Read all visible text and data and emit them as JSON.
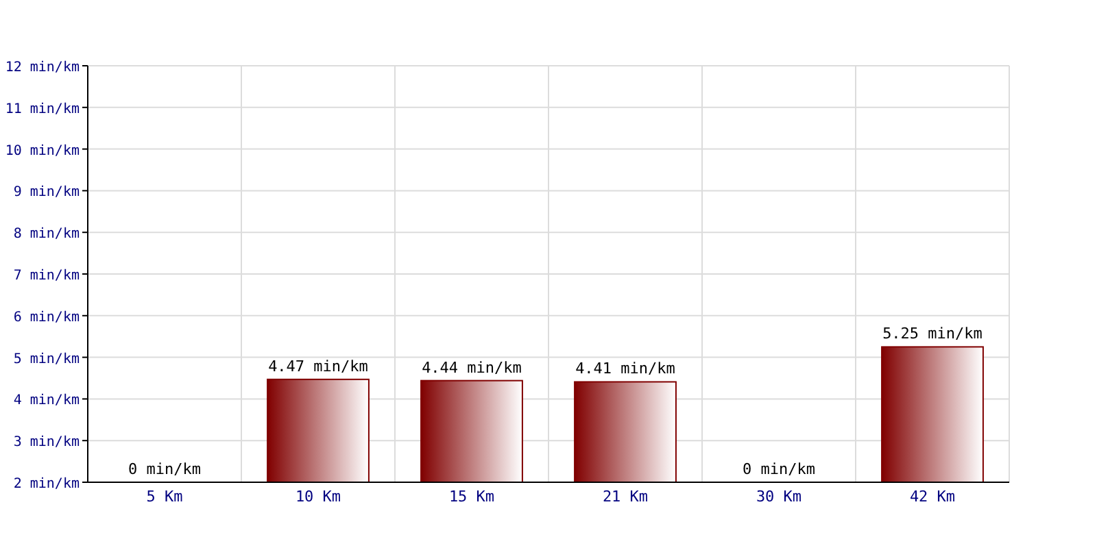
{
  "chart_data": {
    "type": "bar",
    "categories": [
      "5 Km",
      "10 Km",
      "15 Km",
      "21 Km",
      "30 Km",
      "42 Km"
    ],
    "values": [
      null,
      4.47,
      4.44,
      4.41,
      null,
      5.25
    ],
    "value_labels": [
      "0 min/km",
      "4.47 min/km",
      "4.44 min/km",
      "4.41 min/km",
      "0 min/km",
      "5.25 min/km"
    ],
    "color": "#800000",
    "ylim": [
      2,
      12
    ],
    "yticks": [
      {
        "value": 2,
        "label": "2 min/km"
      },
      {
        "value": 3,
        "label": "3 min/km"
      },
      {
        "value": 4,
        "label": "4 min/km"
      },
      {
        "value": 5,
        "label": "5 min/km"
      },
      {
        "value": 6,
        "label": "6 min/km"
      },
      {
        "value": 7,
        "label": "7 min/km"
      },
      {
        "value": 8,
        "label": "8 min/km"
      },
      {
        "value": 9,
        "label": "9 min/km"
      },
      {
        "value": 10,
        "label": "10 min/km"
      },
      {
        "value": 11,
        "label": "11 min/km"
      },
      {
        "value": 12,
        "label": "12 min/km"
      }
    ],
    "grid": true
  }
}
